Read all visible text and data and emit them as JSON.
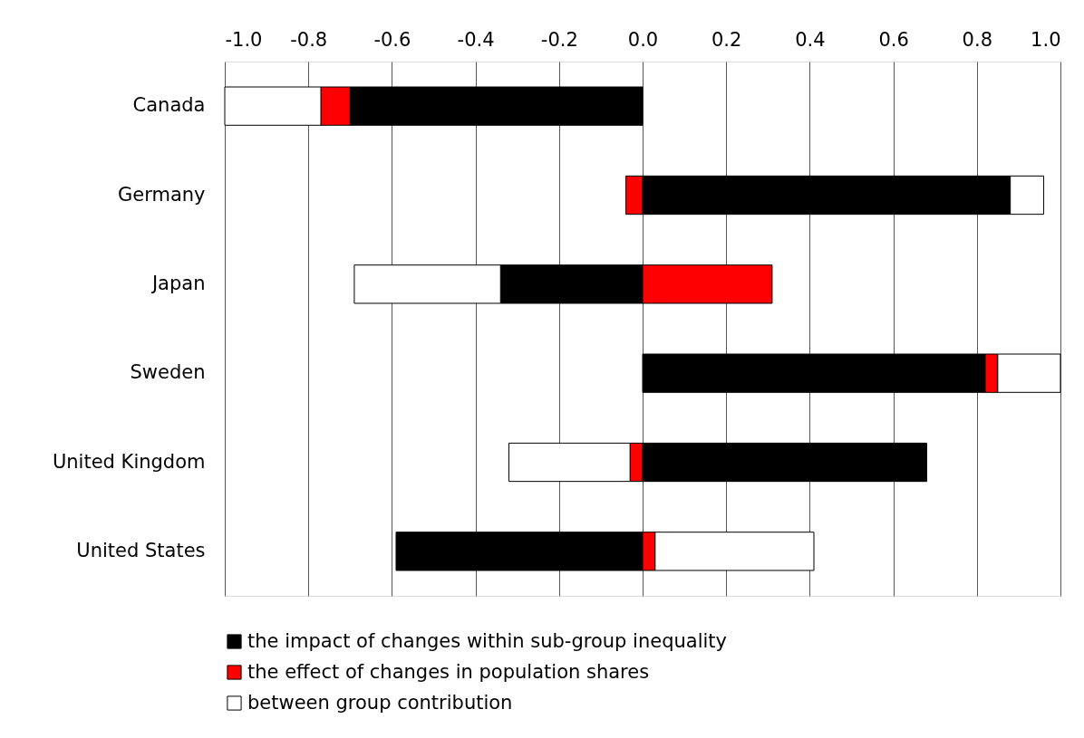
{
  "chart_data": {
    "type": "bar",
    "orientation": "horizontal",
    "stacked": true,
    "categories": [
      "Canada",
      "Germany",
      "Japan",
      "Sweden",
      "United Kingdom",
      "United States"
    ],
    "series": [
      {
        "name": "the impact of changes within sub-group inequality",
        "color": "#000000",
        "values": [
          -0.7,
          0.88,
          -0.34,
          0.82,
          0.68,
          -0.59
        ]
      },
      {
        "name": "the effect of changes in population shares",
        "color": "#ff0000",
        "values": [
          -0.07,
          -0.04,
          0.31,
          0.03,
          -0.03,
          0.03
        ]
      },
      {
        "name": "between group contribution",
        "color": "#ffffff",
        "values": [
          -0.23,
          0.08,
          -0.35,
          0.15,
          -0.29,
          0.38
        ]
      }
    ],
    "xlim": [
      -1,
      1
    ],
    "xticks": [
      {
        "value": -1,
        "label": "-1.0"
      },
      {
        "value": -0.8,
        "label": "-0.8"
      },
      {
        "value": -0.6,
        "label": "-0.6"
      },
      {
        "value": -0.4,
        "label": "-0.4"
      },
      {
        "value": -0.2,
        "label": "-0.2"
      },
      {
        "value": 0,
        "label": "0.0"
      },
      {
        "value": 0.2,
        "label": "0.2"
      },
      {
        "value": 0.4,
        "label": "0.4"
      },
      {
        "value": 0.6,
        "label": "0.6"
      },
      {
        "value": 0.8,
        "label": "0.8"
      },
      {
        "value": 1,
        "label": "1.0"
      }
    ],
    "grid": "x",
    "legend": "bottom"
  }
}
